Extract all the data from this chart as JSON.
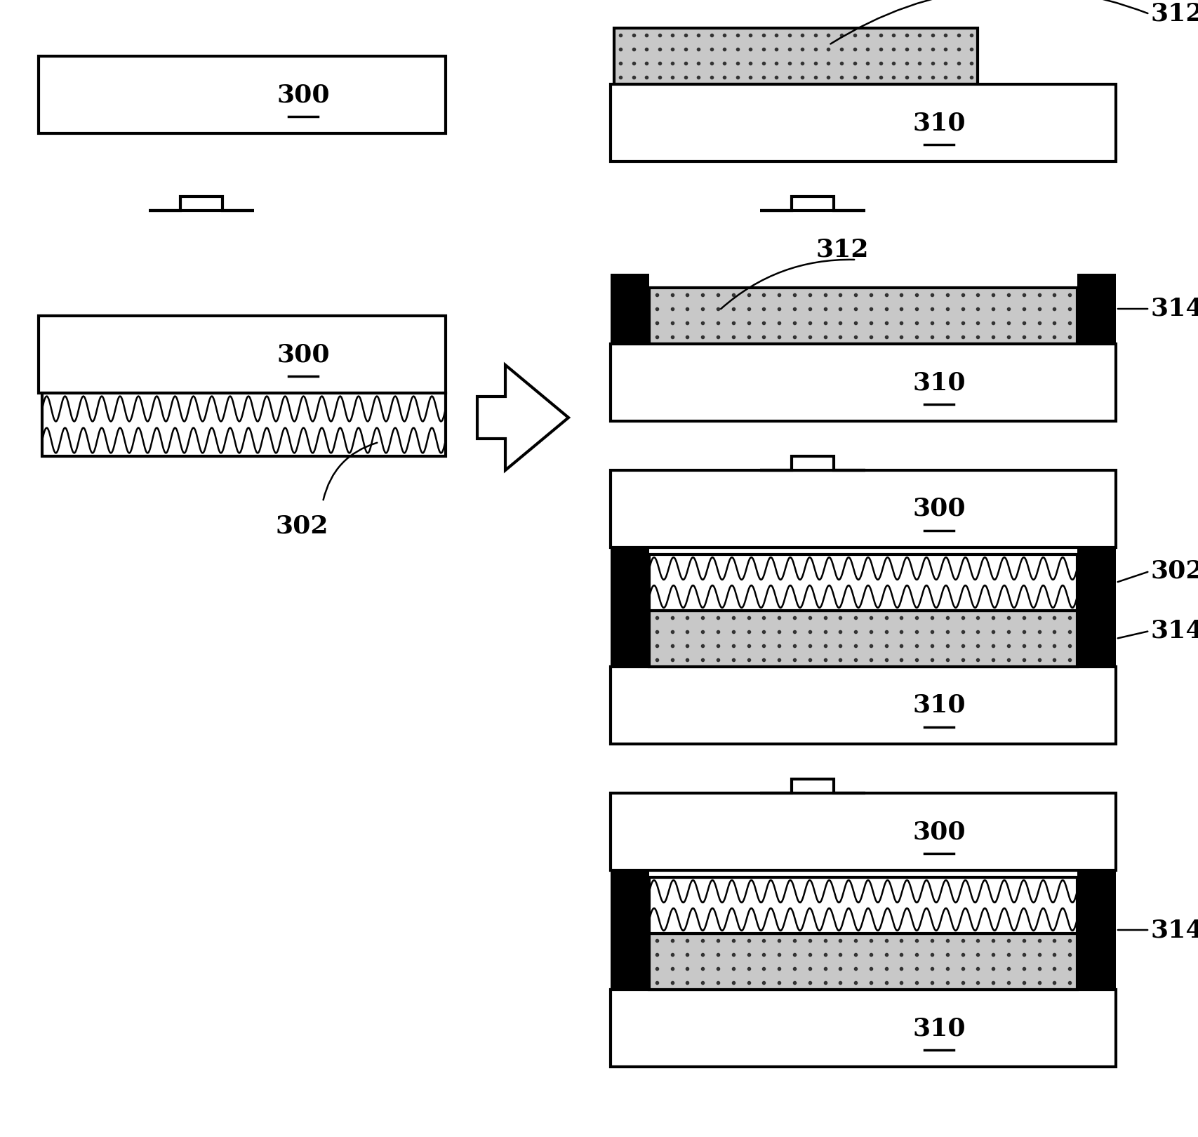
{
  "bg_color": "#ffffff",
  "line_color": "#000000",
  "line_width": 3.0,
  "label_fontsize": 26,
  "label_fontweight": "bold",
  "plate_color": "#ffffff",
  "wavy_bg": "#ffffff",
  "dot_bg": "#cccccc",
  "black_col_color": "#000000",
  "figw": 17.08,
  "figh": 16.2,
  "dpi": 100
}
